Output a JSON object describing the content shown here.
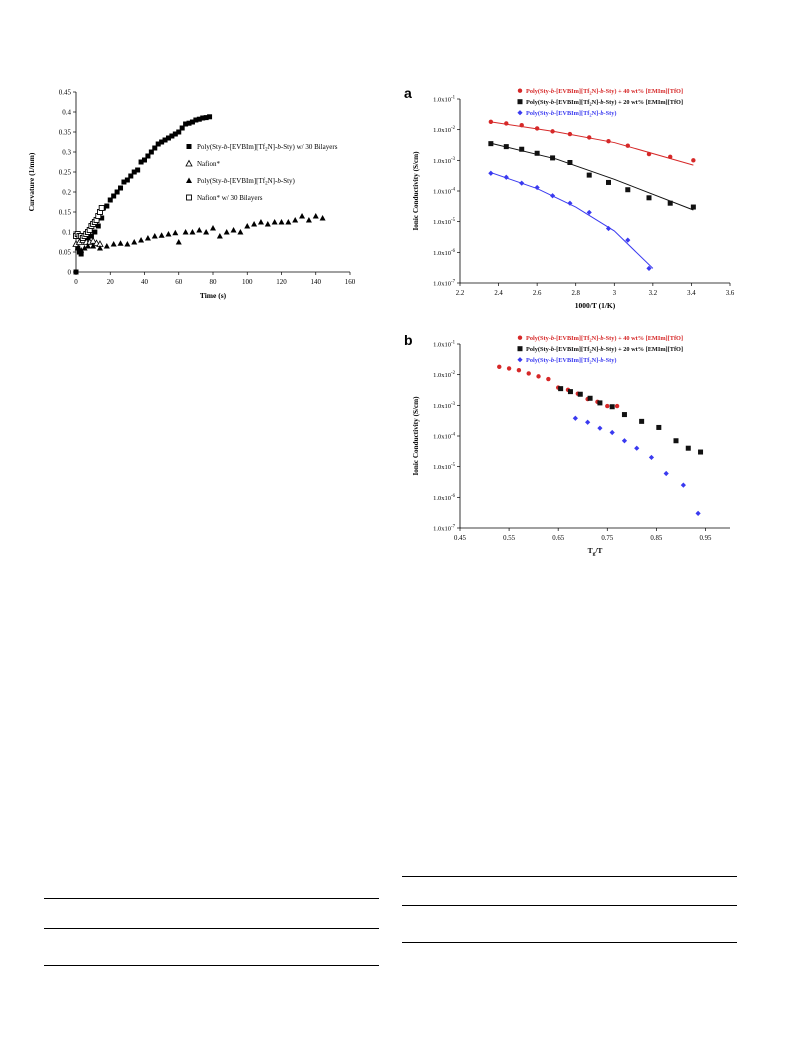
{
  "colors": {
    "red": "#d62828",
    "black": "#111111",
    "blue": "#3a3af0"
  },
  "chart_data": [
    {
      "type": "scatter",
      "id": "curvature",
      "xlabel": "Time (s)",
      "ylabel": "Curvature (1/mm)",
      "xlim": [
        0,
        160
      ],
      "ylim": [
        0,
        0.45
      ],
      "xticks": [
        "0",
        "20",
        "40",
        "60",
        "80",
        "100",
        "120",
        "140",
        "160"
      ],
      "yticks": [
        "0",
        "0.05",
        "0.1",
        "0.15",
        "0.2",
        "0.25",
        "0.3",
        "0.35",
        "0.4",
        "0.45"
      ],
      "legend_position": "right",
      "series": [
        {
          "name": "Poly(Sty-b-[EVBIm][Tf2N]-b-Sty) w/ 30 Bilayers",
          "marker": "filled-square",
          "points": [
            [
              0,
              0.0
            ],
            [
              1,
              0.06
            ],
            [
              2,
              0.05
            ],
            [
              3,
              0.045
            ],
            [
              5,
              0.08
            ],
            [
              7,
              0.085
            ],
            [
              9,
              0.09
            ],
            [
              11,
              0.1
            ],
            [
              13,
              0.115
            ],
            [
              15,
              0.135
            ],
            [
              16,
              0.16
            ],
            [
              18,
              0.165
            ],
            [
              20,
              0.18
            ],
            [
              22,
              0.19
            ],
            [
              24,
              0.2
            ],
            [
              26,
              0.21
            ],
            [
              28,
              0.225
            ],
            [
              30,
              0.23
            ],
            [
              32,
              0.24
            ],
            [
              34,
              0.25
            ],
            [
              36,
              0.255
            ],
            [
              38,
              0.275
            ],
            [
              40,
              0.28
            ],
            [
              42,
              0.29
            ],
            [
              44,
              0.3
            ],
            [
              46,
              0.31
            ],
            [
              48,
              0.32
            ],
            [
              50,
              0.325
            ],
            [
              52,
              0.33
            ],
            [
              54,
              0.335
            ],
            [
              56,
              0.34
            ],
            [
              58,
              0.345
            ],
            [
              60,
              0.35
            ],
            [
              62,
              0.36
            ],
            [
              64,
              0.37
            ],
            [
              66,
              0.372
            ],
            [
              68,
              0.375
            ],
            [
              70,
              0.38
            ],
            [
              72,
              0.382
            ],
            [
              74,
              0.385
            ],
            [
              76,
              0.386
            ],
            [
              78,
              0.388
            ]
          ]
        },
        {
          "name": "Nafion*",
          "marker": "open-triangle",
          "points": [
            [
              0,
              0.07
            ],
            [
              2,
              0.075
            ],
            [
              4,
              0.08
            ],
            [
              6,
              0.075
            ],
            [
              8,
              0.075
            ],
            [
              10,
              0.078
            ],
            [
              12,
              0.072
            ],
            [
              14,
              0.07
            ]
          ]
        },
        {
          "name": "Poly(Sty-b-[EVBIm][Tf2N]-b-Sty)",
          "marker": "filled-triangle",
          "points": [
            [
              1,
              0.06
            ],
            [
              3,
              0.055
            ],
            [
              5,
              0.06
            ],
            [
              7,
              0.065
            ],
            [
              10,
              0.065
            ],
            [
              14,
              0.06
            ],
            [
              18,
              0.065
            ],
            [
              22,
              0.07
            ],
            [
              26,
              0.072
            ],
            [
              30,
              0.07
            ],
            [
              34,
              0.075
            ],
            [
              38,
              0.08
            ],
            [
              42,
              0.085
            ],
            [
              46,
              0.09
            ],
            [
              50,
              0.092
            ],
            [
              54,
              0.095
            ],
            [
              58,
              0.098
            ],
            [
              60,
              0.075
            ],
            [
              64,
              0.1
            ],
            [
              68,
              0.1
            ],
            [
              72,
              0.105
            ],
            [
              76,
              0.1
            ],
            [
              80,
              0.11
            ],
            [
              84,
              0.09
            ],
            [
              88,
              0.1
            ],
            [
              92,
              0.105
            ],
            [
              96,
              0.1
            ],
            [
              100,
              0.115
            ],
            [
              104,
              0.12
            ],
            [
              108,
              0.125
            ],
            [
              112,
              0.12
            ],
            [
              116,
              0.125
            ],
            [
              120,
              0.125
            ],
            [
              124,
              0.125
            ],
            [
              128,
              0.13
            ],
            [
              132,
              0.14
            ],
            [
              136,
              0.13
            ],
            [
              140,
              0.14
            ],
            [
              144,
              0.135
            ]
          ]
        },
        {
          "name": "Nafion* w/ 30 Bilayers",
          "marker": "open-square",
          "points": [
            [
              0,
              0.09
            ],
            [
              1,
              0.095
            ],
            [
              2,
              0.09
            ],
            [
              3,
              0.09
            ],
            [
              4,
              0.085
            ],
            [
              5,
              0.09
            ],
            [
              6,
              0.095
            ],
            [
              7,
              0.1
            ],
            [
              8,
              0.105
            ],
            [
              9,
              0.115
            ],
            [
              10,
              0.12
            ],
            [
              11,
              0.125
            ],
            [
              12,
              0.13
            ],
            [
              13,
              0.14
            ],
            [
              14,
              0.15
            ],
            [
              15,
              0.16
            ]
          ]
        }
      ]
    },
    {
      "type": "scatter",
      "id": "a",
      "panel_label": "a",
      "xlabel": "1000/T (1/K)",
      "ylabel": "Ionic Conductivity (S/cm)",
      "xlim": [
        2.2,
        3.6
      ],
      "ylog": true,
      "ylim_exp": [
        -7,
        -1
      ],
      "xticks": [
        "2.2",
        "2.4",
        "2.6",
        "2.8",
        "3",
        "3.2",
        "3.4",
        "3.6"
      ],
      "yticks": [
        "1.0x10-7",
        "1.0x10-6",
        "1.0x10-5",
        "1.0x10-4",
        "1.0x10-3",
        "1.0x10-2",
        "1.0x10-1"
      ],
      "legend_position": "top",
      "series": [
        {
          "name": "Poly(Sty-b-[EVBIm][Tf2N]-b-Sty) + 40 wt% [EMIm][TfO]",
          "color": "red",
          "marker": "circle",
          "x": [
            2.36,
            2.44,
            2.52,
            2.6,
            2.68,
            2.77,
            2.87,
            2.97,
            3.07,
            3.18,
            3.29,
            3.41
          ],
          "y": [
            0.018,
            0.016,
            0.014,
            0.011,
            0.0088,
            0.0072,
            0.0056,
            0.0042,
            0.003,
            0.0016,
            0.0013,
            0.001
          ],
          "fit": [
            [
              2.36,
              0.018
            ],
            [
              2.7,
              0.0085
            ],
            [
              3.0,
              0.0038
            ],
            [
              3.41,
              0.0007
            ]
          ]
        },
        {
          "name": "Poly(Sty-b-[EVBIm][Tf2N]-b-Sty) + 20 wt% [EMIm][TfO]",
          "color": "black",
          "marker": "square",
          "x": [
            2.36,
            2.44,
            2.52,
            2.6,
            2.68,
            2.77,
            2.87,
            2.97,
            3.07,
            3.18,
            3.29,
            3.41
          ],
          "y": [
            0.0035,
            0.0028,
            0.0023,
            0.0017,
            0.0012,
            0.00085,
            0.00033,
            0.00019,
            0.00011,
            6e-05,
            4e-05,
            3e-05
          ],
          "fit": [
            [
              2.36,
              0.0036
            ],
            [
              2.7,
              0.0011
            ],
            [
              3.0,
              0.00024
            ],
            [
              3.41,
              2.4e-05
            ]
          ]
        },
        {
          "name": "Poly(Sty-b-[EVBIm][Tf2N]-b-Sty)",
          "color": "blue",
          "marker": "diamond",
          "x": [
            2.36,
            2.44,
            2.52,
            2.6,
            2.68,
            2.77,
            2.87,
            2.97,
            3.07,
            3.18
          ],
          "y": [
            0.00038,
            0.00028,
            0.00018,
            0.00013,
            7e-05,
            4e-05,
            2e-05,
            6e-06,
            2.5e-06,
            3e-07
          ],
          "fit": [
            [
              2.36,
              0.0004
            ],
            [
              2.6,
              0.00012
            ],
            [
              2.8,
              3e-05
            ],
            [
              3.0,
              5e-06
            ],
            [
              3.2,
              3e-07
            ]
          ]
        }
      ]
    },
    {
      "type": "scatter",
      "id": "b",
      "panel_label": "b",
      "xlabel": "Tg/T",
      "ylabel": "Ionic Conductivity (S/cm)",
      "xlim": [
        0.45,
        1.0
      ],
      "ylog": true,
      "ylim_exp": [
        -7,
        -1
      ],
      "xticks": [
        "0.45",
        "0.55",
        "0.65",
        "0.75",
        "0.85",
        "0.95"
      ],
      "yticks": [
        "1.0x10-7",
        "1.0x10-6",
        "1.0x10-5",
        "1.0x10-4",
        "1.0x10-3",
        "1.0x10-2",
        "1.0x10-1"
      ],
      "legend_position": "top",
      "series": [
        {
          "name": "Poly(Sty-b-[EVBIm][Tf2N]-b-Sty) + 40 wt% [EMIm][TfO]",
          "color": "red",
          "marker": "circle",
          "x": [
            0.53,
            0.55,
            0.57,
            0.59,
            0.61,
            0.63,
            0.65,
            0.67,
            0.69,
            0.71,
            0.73,
            0.75,
            0.77
          ],
          "y": [
            0.018,
            0.016,
            0.014,
            0.011,
            0.0088,
            0.0072,
            0.0038,
            0.0032,
            0.0024,
            0.0016,
            0.0013,
            0.00095,
            0.00095
          ]
        },
        {
          "name": "Poly(Sty-b-[EVBIm][Tf2N]-b-Sty) + 20 wt% [EMIm][TfO]",
          "color": "black",
          "marker": "square",
          "x": [
            0.655,
            0.675,
            0.695,
            0.715,
            0.735,
            0.76,
            0.785,
            0.82,
            0.855,
            0.89,
            0.915,
            0.94
          ],
          "y": [
            0.0035,
            0.0028,
            0.0023,
            0.0017,
            0.0012,
            0.0009,
            0.0005,
            0.0003,
            0.00019,
            7e-05,
            4e-05,
            3e-05
          ]
        },
        {
          "name": "Poly(Sty-b-[EVBIm][Tf2N]-b-Sty)",
          "color": "blue",
          "marker": "diamond",
          "x": [
            0.685,
            0.71,
            0.735,
            0.76,
            0.785,
            0.81,
            0.84,
            0.87,
            0.905,
            0.935
          ],
          "y": [
            0.00038,
            0.00028,
            0.00018,
            0.00013,
            7e-05,
            4e-05,
            2e-05,
            6e-06,
            2.5e-06,
            3e-07
          ]
        }
      ]
    }
  ]
}
